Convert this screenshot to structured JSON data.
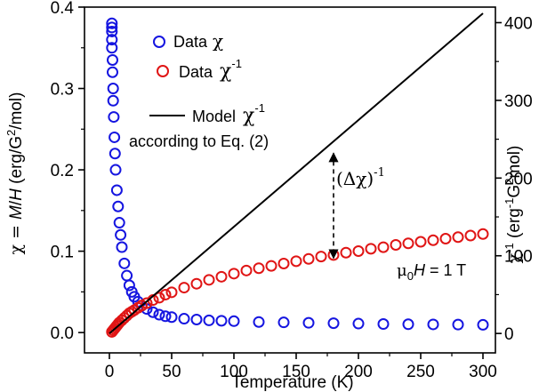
{
  "chart_data": {
    "type": "scatter",
    "xlabel": "Temperature (K)",
    "ylabel": {
      "prefix": "χ = ",
      "m": "M",
      "slash": "/",
      "h": "H",
      "unit": " (erg/G",
      "exp": "2",
      "unit_end": "/mol)"
    },
    "y2label": {
      "chi": "χ",
      "exp": "-1",
      "unit": " (erg",
      "unit_exp": "-1",
      "g": "G",
      "g_exp": "2",
      "end": "mol)"
    },
    "xlim": [
      -20,
      310
    ],
    "ylim": [
      -0.025,
      0.4
    ],
    "y2lim": [
      -25,
      420
    ],
    "x_ticks": [
      0,
      50,
      100,
      150,
      200,
      250,
      300
    ],
    "x_tick_labels": [
      "0",
      "50",
      "100",
      "150",
      "200",
      "250",
      "300"
    ],
    "y_ticks": [
      0.0,
      0.1,
      0.2,
      0.3,
      0.4
    ],
    "y_tick_labels": [
      "0.0",
      "0.1",
      "0.2",
      "0.3",
      "0.4"
    ],
    "y2_ticks": [
      0,
      100,
      200,
      300,
      400
    ],
    "y2_tick_labels": [
      "0",
      "100",
      "200",
      "300",
      "400"
    ],
    "colors": {
      "chi": "#1515e0",
      "inv": "#e01515",
      "model": "#000000"
    },
    "series": [
      {
        "name": "Data χ",
        "axis": "left",
        "marker": "open-circle",
        "x": [
          2,
          2,
          2,
          2,
          2,
          2.5,
          2.5,
          3,
          3,
          3.5,
          4,
          4.5,
          5,
          6,
          7,
          8,
          9,
          10,
          12,
          14,
          16,
          18,
          20,
          23,
          26,
          30,
          35,
          40,
          45,
          50,
          60,
          70,
          80,
          90,
          100,
          120,
          140,
          160,
          180,
          200,
          220,
          240,
          260,
          280,
          300
        ],
        "y": [
          0.38,
          0.375,
          0.37,
          0.36,
          0.35,
          0.335,
          0.32,
          0.3,
          0.285,
          0.265,
          0.24,
          0.22,
          0.2,
          0.175,
          0.155,
          0.135,
          0.12,
          0.105,
          0.085,
          0.07,
          0.058,
          0.05,
          0.044,
          0.038,
          0.033,
          0.029,
          0.025,
          0.022,
          0.02,
          0.019,
          0.017,
          0.016,
          0.015,
          0.0145,
          0.014,
          0.013,
          0.0125,
          0.012,
          0.0115,
          0.011,
          0.0105,
          0.0102,
          0.01,
          0.0098,
          0.0095
        ]
      },
      {
        "name": "Data χ⁻¹",
        "axis": "right",
        "marker": "open-circle",
        "x": [
          2,
          3,
          4,
          5,
          6,
          7,
          8,
          10,
          12,
          14,
          16,
          18,
          20,
          23,
          26,
          30,
          35,
          40,
          45,
          50,
          60,
          70,
          80,
          90,
          100,
          110,
          120,
          130,
          140,
          150,
          160,
          170,
          180,
          190,
          200,
          210,
          220,
          230,
          240,
          250,
          260,
          270,
          280,
          290,
          300
        ],
        "y": [
          2,
          4,
          6,
          8,
          10,
          12,
          14,
          17,
          20,
          23,
          26,
          28,
          30,
          33,
          36,
          39,
          43,
          46,
          50,
          53,
          59,
          64,
          69,
          73,
          77,
          81,
          84,
          87,
          90,
          93,
          96,
          99,
          101,
          104,
          106,
          109,
          111,
          114,
          116,
          118,
          120,
          122,
          124,
          126,
          128
        ]
      },
      {
        "name": "Model χ⁻¹ according to Eq. (2)",
        "axis": "right",
        "type": "line",
        "x": [
          0,
          300
        ],
        "y": [
          0,
          412
        ]
      }
    ],
    "legend": [
      {
        "label": "Data",
        "symbol": "χ",
        "sup": ""
      },
      {
        "label": "Data",
        "symbol": "χ",
        "sup": "-1"
      },
      {
        "label": "Model",
        "symbol": "χ",
        "sup": "-1"
      }
    ],
    "legend_line2": "according to Eq. (2)",
    "annotations": {
      "delta": {
        "text": "(Δχ)",
        "sup": "-1",
        "x": 180,
        "y_top": 232,
        "y_bottom": 97
      },
      "field": {
        "mu": "μ",
        "sub": "0",
        "h": "H",
        "rest": " = 1 T"
      }
    }
  }
}
